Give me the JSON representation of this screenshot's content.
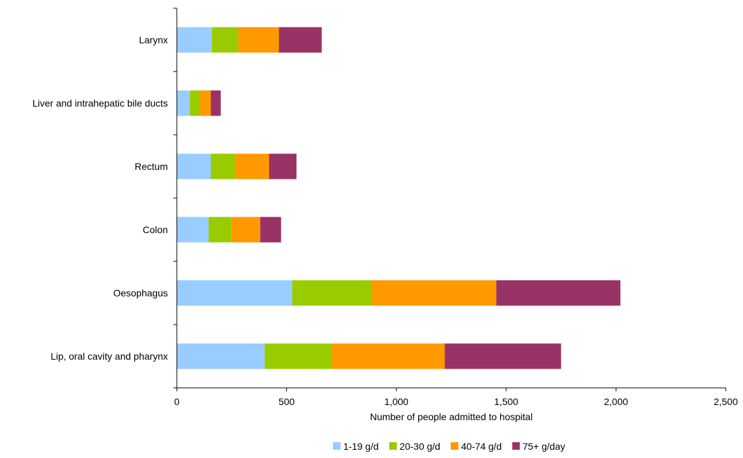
{
  "chart_data": {
    "type": "bar",
    "orientation": "horizontal",
    "stacked": true,
    "title": "",
    "xlabel": "Number of people admitted to hospital",
    "ylabel": "",
    "xlim": [
      0,
      2500
    ],
    "xticks": [
      0,
      500,
      1000,
      1500,
      2000,
      2500
    ],
    "xtick_labels": [
      "0",
      "500",
      "1,000",
      "1,500",
      "2,000",
      "2,500"
    ],
    "grid": false,
    "legend_position": "bottom",
    "categories": [
      "Larynx",
      "Liver and intrahepatic bile ducts",
      "Rectum",
      "Colon",
      "Oesophagus",
      "Lip, oral cavity and pharynx"
    ],
    "series": [
      {
        "name": "1-19 g/d",
        "color": "#99ccff",
        "values": [
          160,
          60,
          155,
          145,
          525,
          400
        ]
      },
      {
        "name": "20-30 g/d",
        "color": "#99cc00",
        "values": [
          120,
          45,
          110,
          105,
          360,
          305
        ]
      },
      {
        "name": "40-74 g/d",
        "color": "#ff9900",
        "values": [
          185,
          50,
          155,
          130,
          570,
          515
        ]
      },
      {
        "name": "75+ g/day",
        "color": "#993366",
        "values": [
          195,
          45,
          125,
          95,
          565,
          530
        ]
      }
    ]
  }
}
